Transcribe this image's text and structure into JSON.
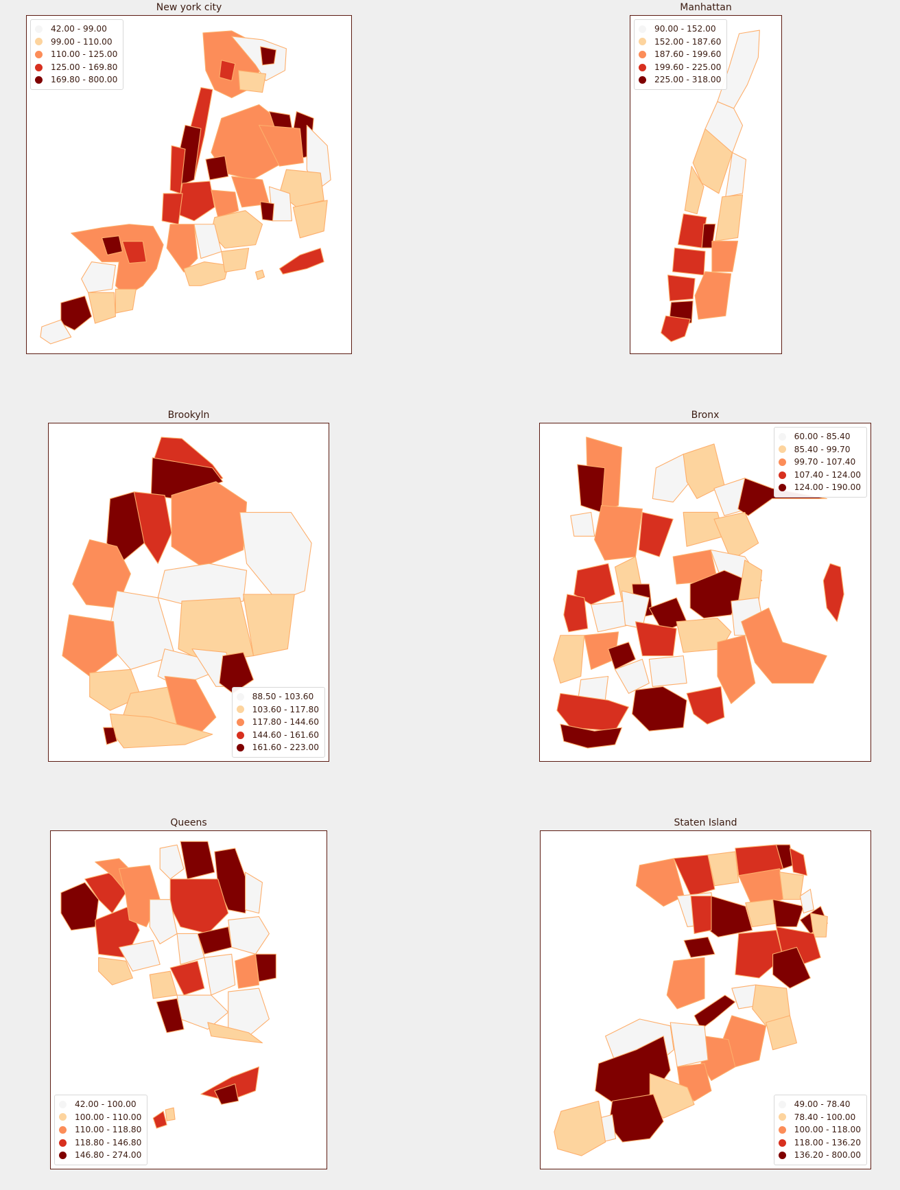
{
  "palette": [
    "#f5f5f5",
    "#fdd49e",
    "#fc8d59",
    "#d7301f",
    "#7f0000"
  ],
  "chart_data": [
    {
      "type": "choropleth",
      "title": "New york city",
      "legend_position": "top-left",
      "legend": [
        "42.00 - 99.00",
        "99.00 - 110.00",
        "110.00 - 125.00",
        "125.00 - 169.80",
        "169.80 - 800.00"
      ]
    },
    {
      "type": "choropleth",
      "title": "Manhattan",
      "legend_position": "top-left",
      "legend": [
        "90.00 - 152.00",
        "152.00 - 187.60",
        "187.60 - 199.60",
        "199.60 - 225.00",
        "225.00 - 318.00"
      ]
    },
    {
      "type": "choropleth",
      "title": "Brookyln",
      "legend_position": "bottom-right",
      "legend": [
        "88.50 - 103.60",
        "103.60 - 117.80",
        "117.80 - 144.60",
        "144.60 - 161.60",
        "161.60 - 223.00"
      ]
    },
    {
      "type": "choropleth",
      "title": "Bronx",
      "legend_position": "top-right",
      "legend": [
        "60.00 - 85.40",
        "85.40 - 99.70",
        "99.70 - 107.40",
        "107.40 - 124.00",
        "124.00 - 190.00"
      ]
    },
    {
      "type": "choropleth",
      "title": "Queens",
      "legend_position": "bottom-left",
      "legend": [
        "42.00 - 100.00",
        "100.00 - 110.00",
        "110.00 - 118.80",
        "118.80 - 146.80",
        "146.80 - 274.00"
      ]
    },
    {
      "type": "choropleth",
      "title": "Staten Island",
      "legend_position": "bottom-right",
      "legend": [
        "49.00 - 78.40",
        "78.40 - 100.00",
        "100.00 - 118.00",
        "118.00 - 136.20",
        "136.20 - 800.00"
      ]
    }
  ]
}
